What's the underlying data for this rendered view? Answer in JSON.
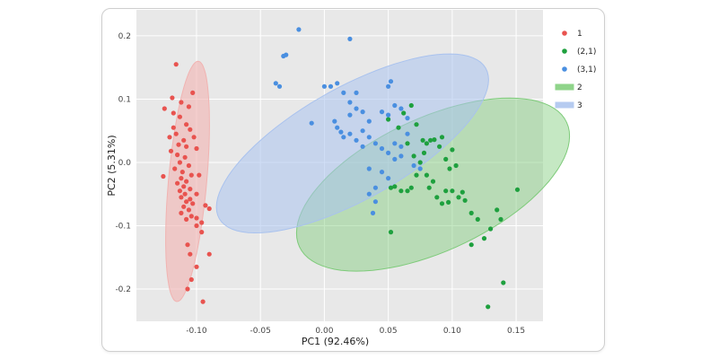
{
  "chart_data": {
    "type": "scatter",
    "xlabel": "PC1 (92.46%)",
    "ylabel": "PC2 (5.31%)",
    "xlim": [
      -0.147,
      0.171
    ],
    "ylim": [
      -0.251,
      0.241
    ],
    "x_ticks": [
      -0.1,
      -0.05,
      0.0,
      0.05,
      0.1,
      0.15
    ],
    "x_tick_labels": [
      "-0.10",
      "-0.05",
      "0.00",
      "0.05",
      "0.10",
      "0.15"
    ],
    "y_ticks": [
      -0.2,
      -0.1,
      0.0,
      0.1,
      0.2
    ],
    "y_tick_labels": [
      "-0.2",
      "-0.1",
      "0.0",
      "0.1",
      "0.2"
    ],
    "grid": true,
    "legend_position": "right",
    "background": "#e8e8e8",
    "series": [
      {
        "name": "1",
        "color": "#e8534f",
        "points": [
          [
            -0.125,
            0.085
          ],
          [
            -0.118,
            0.078
          ],
          [
            -0.112,
            0.095
          ],
          [
            -0.113,
            0.072
          ],
          [
            -0.108,
            0.06
          ],
          [
            -0.105,
            0.052
          ],
          [
            -0.118,
            0.055
          ],
          [
            -0.121,
            0.04
          ],
          [
            -0.116,
            0.045
          ],
          [
            -0.11,
            0.035
          ],
          [
            -0.114,
            0.028
          ],
          [
            -0.108,
            0.025
          ],
          [
            -0.12,
            0.018
          ],
          [
            -0.115,
            0.012
          ],
          [
            -0.109,
            0.008
          ],
          [
            -0.113,
            0.0
          ],
          [
            -0.106,
            -0.005
          ],
          [
            -0.117,
            -0.01
          ],
          [
            -0.111,
            -0.015
          ],
          [
            -0.104,
            -0.02
          ],
          [
            -0.126,
            -0.022
          ],
          [
            -0.112,
            -0.025
          ],
          [
            -0.108,
            -0.03
          ],
          [
            -0.115,
            -0.033
          ],
          [
            -0.11,
            -0.038
          ],
          [
            -0.105,
            -0.042
          ],
          [
            -0.113,
            -0.045
          ],
          [
            -0.109,
            -0.05
          ],
          [
            -0.112,
            -0.055
          ],
          [
            -0.105,
            -0.058
          ],
          [
            -0.108,
            -0.062
          ],
          [
            -0.103,
            -0.065
          ],
          [
            -0.11,
            -0.07
          ],
          [
            -0.106,
            -0.075
          ],
          [
            -0.112,
            -0.08
          ],
          [
            -0.104,
            -0.085
          ],
          [
            -0.1,
            -0.088
          ],
          [
            -0.108,
            -0.09
          ],
          [
            -0.096,
            -0.095
          ],
          [
            -0.09,
            -0.073
          ],
          [
            -0.093,
            -0.068
          ],
          [
            -0.1,
            -0.1
          ],
          [
            -0.107,
            -0.13
          ],
          [
            -0.105,
            -0.145
          ],
          [
            -0.1,
            -0.165
          ],
          [
            -0.104,
            -0.185
          ],
          [
            -0.107,
            -0.2
          ],
          [
            -0.095,
            -0.22
          ],
          [
            -0.09,
            -0.145
          ],
          [
            -0.096,
            -0.11
          ],
          [
            -0.1,
            -0.05
          ],
          [
            -0.098,
            -0.02
          ],
          [
            -0.102,
            0.04
          ],
          [
            -0.1,
            0.022
          ],
          [
            -0.106,
            0.088
          ],
          [
            -0.119,
            0.102
          ],
          [
            -0.103,
            0.11
          ],
          [
            -0.116,
            0.155
          ]
        ]
      },
      {
        "name": "(2,1)",
        "color": "#1ea03e",
        "points": [
          [
            0.052,
            -0.04
          ],
          [
            0.055,
            -0.038
          ],
          [
            0.06,
            -0.045
          ],
          [
            0.065,
            -0.045
          ],
          [
            0.068,
            -0.04
          ],
          [
            0.072,
            -0.02
          ],
          [
            0.075,
            0.0
          ],
          [
            0.078,
            0.015
          ],
          [
            0.08,
            0.03
          ],
          [
            0.083,
            0.035
          ],
          [
            0.086,
            0.036
          ],
          [
            0.09,
            0.025
          ],
          [
            0.092,
            0.04
          ],
          [
            0.095,
            0.005
          ],
          [
            0.098,
            -0.01
          ],
          [
            0.1,
            0.02
          ],
          [
            0.103,
            -0.005
          ],
          [
            0.08,
            -0.02
          ],
          [
            0.082,
            -0.04
          ],
          [
            0.088,
            -0.055
          ],
          [
            0.092,
            -0.065
          ],
          [
            0.095,
            -0.045
          ],
          [
            0.1,
            -0.045
          ],
          [
            0.105,
            -0.055
          ],
          [
            0.11,
            -0.06
          ],
          [
            0.115,
            -0.08
          ],
          [
            0.12,
            -0.09
          ],
          [
            0.125,
            -0.12
          ],
          [
            0.115,
            -0.13
          ],
          [
            0.13,
            -0.105
          ],
          [
            0.135,
            -0.075
          ],
          [
            0.138,
            -0.09
          ],
          [
            0.14,
            -0.19
          ],
          [
            0.128,
            -0.228
          ],
          [
            0.151,
            -0.043
          ],
          [
            0.108,
            -0.047
          ],
          [
            0.085,
            -0.03
          ],
          [
            0.07,
            0.01
          ],
          [
            0.065,
            0.03
          ],
          [
            0.072,
            0.06
          ],
          [
            0.062,
            0.078
          ],
          [
            0.058,
            0.055
          ],
          [
            0.05,
            0.068
          ],
          [
            0.052,
            -0.11
          ],
          [
            0.068,
            0.09
          ],
          [
            0.077,
            0.035
          ],
          [
            0.097,
            -0.063
          ]
        ]
      },
      {
        "name": "(3,1)",
        "color": "#4a8fe0",
        "points": [
          [
            -0.02,
            0.21
          ],
          [
            -0.03,
            0.17
          ],
          [
            -0.032,
            0.168
          ],
          [
            -0.038,
            0.125
          ],
          [
            -0.035,
            0.12
          ],
          [
            0.0,
            0.12
          ],
          [
            0.005,
            0.12
          ],
          [
            0.01,
            0.125
          ],
          [
            0.015,
            0.11
          ],
          [
            0.02,
            0.095
          ],
          [
            0.025,
            0.11
          ],
          [
            0.02,
            0.075
          ],
          [
            0.025,
            0.085
          ],
          [
            0.03,
            0.08
          ],
          [
            0.035,
            0.065
          ],
          [
            0.045,
            0.08
          ],
          [
            0.05,
            0.075
          ],
          [
            0.055,
            0.09
          ],
          [
            0.06,
            0.085
          ],
          [
            0.065,
            0.07
          ],
          [
            0.008,
            0.065
          ],
          [
            0.01,
            0.055
          ],
          [
            0.013,
            0.048
          ],
          [
            0.015,
            0.04
          ],
          [
            -0.01,
            0.062
          ],
          [
            0.02,
            0.045
          ],
          [
            0.025,
            0.035
          ],
          [
            0.03,
            0.025
          ],
          [
            0.04,
            0.03
          ],
          [
            0.045,
            0.022
          ],
          [
            0.05,
            0.015
          ],
          [
            0.055,
            0.03
          ],
          [
            0.06,
            0.025
          ],
          [
            0.065,
            0.045
          ],
          [
            0.07,
            -0.005
          ],
          [
            0.075,
            -0.01
          ],
          [
            0.045,
            -0.015
          ],
          [
            0.035,
            -0.01
          ],
          [
            0.04,
            -0.04
          ],
          [
            0.035,
            -0.05
          ],
          [
            0.04,
            -0.062
          ],
          [
            0.038,
            -0.08
          ],
          [
            0.05,
            -0.025
          ],
          [
            0.055,
            0.005
          ],
          [
            0.052,
            0.128
          ],
          [
            0.05,
            0.12
          ],
          [
            0.02,
            0.195
          ],
          [
            0.03,
            0.05
          ],
          [
            0.035,
            0.04
          ],
          [
            0.06,
            0.01
          ]
        ]
      }
    ],
    "ellipses": [
      {
        "name": "2",
        "color": "#7ecb7a",
        "fill_opacity": 0.45,
        "cx": 0.085,
        "cy": -0.035,
        "rx": 0.078,
        "ry": 0.155,
        "angle_deg": -33
      },
      {
        "name": "3",
        "color": "#a9c2ee",
        "fill_opacity": 0.55,
        "cx": 0.022,
        "cy": 0.03,
        "rx": 0.064,
        "ry": 0.165,
        "angle_deg": -34
      },
      {
        "name": "1",
        "color": "#f1b3b1",
        "fill_opacity": 0.6,
        "cx": -0.107,
        "cy": -0.03,
        "rx": 0.015,
        "ry": 0.19,
        "angle_deg": -2.5
      }
    ],
    "legend": [
      {
        "label": "1",
        "kind": "point",
        "color": "#e8534f"
      },
      {
        "label": "(2,1)",
        "kind": "point",
        "color": "#1ea03e"
      },
      {
        "label": "(3,1)",
        "kind": "point",
        "color": "#4a8fe0"
      },
      {
        "label": "2",
        "kind": "band",
        "color": "#8fd48a"
      },
      {
        "label": "3",
        "kind": "band",
        "color": "#b6cbf0"
      }
    ]
  }
}
